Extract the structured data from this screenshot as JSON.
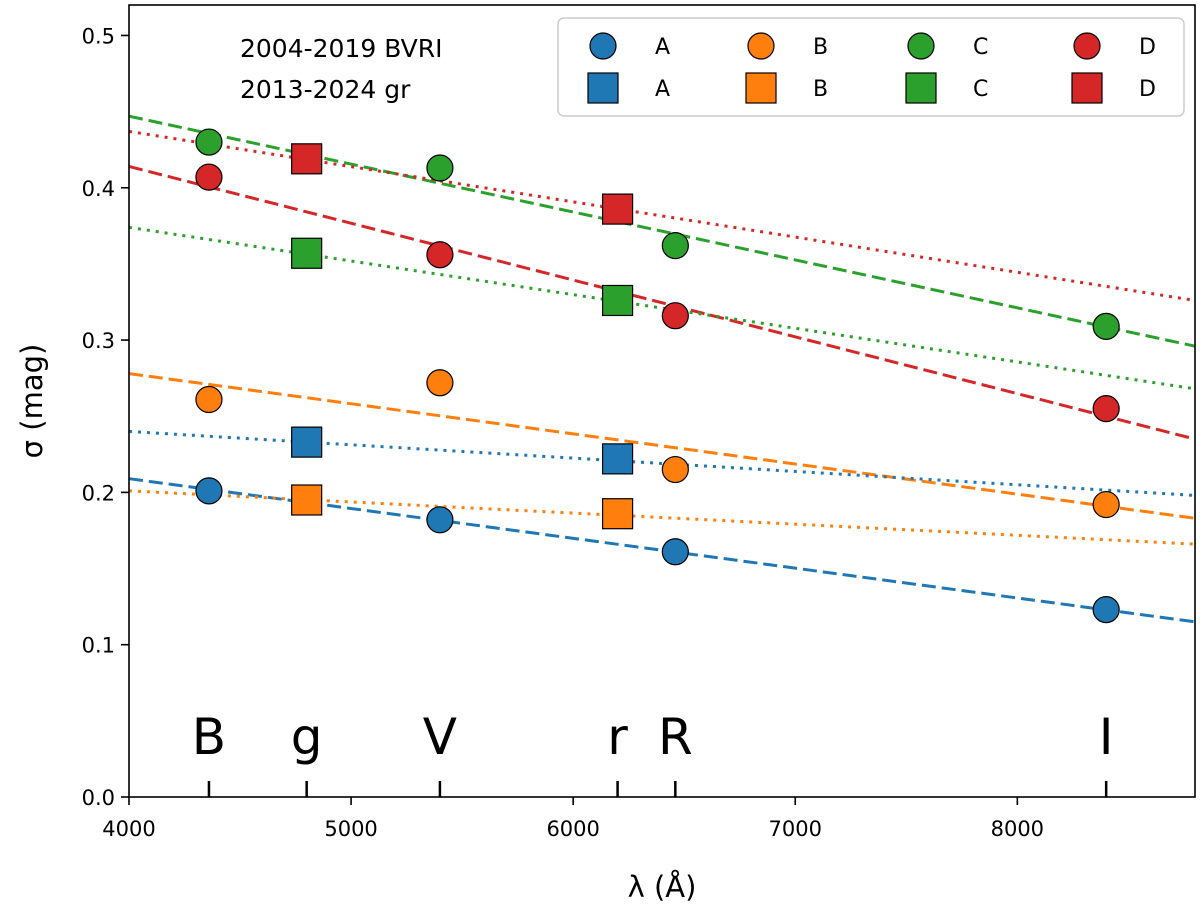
{
  "chart_data": {
    "type": "scatter",
    "xlabel": "λ (Å)",
    "ylabel": "σ (mag)",
    "xlim": [
      4000,
      8800
    ],
    "ylim": [
      0.0,
      0.52
    ],
    "xticks": [
      4000,
      5000,
      6000,
      7000,
      8000
    ],
    "xtick_labels": [
      "4000",
      "5000",
      "6000",
      "7000",
      "8000"
    ],
    "yticks": [
      0.0,
      0.1,
      0.2,
      0.3,
      0.4,
      0.5
    ],
    "ytick_labels": [
      "0.0",
      "0.1",
      "0.2",
      "0.3",
      "0.4",
      "0.5"
    ],
    "grid": false,
    "legend_placement": "top-right",
    "annotation_lines": [
      "2004-2019 BVRI",
      "2013-2024 gr"
    ],
    "band_markers": [
      {
        "label": "B",
        "x": 4360
      },
      {
        "label": "g",
        "x": 4800
      },
      {
        "label": "V",
        "x": 5400
      },
      {
        "label": "r",
        "x": 6200
      },
      {
        "label": "R",
        "x": 6460
      },
      {
        "label": "I",
        "x": 8400
      }
    ],
    "colors": {
      "A": "#1f77b4",
      "B": "#ff7f0e",
      "C": "#2ca02c",
      "D": "#d62728"
    },
    "series": [
      {
        "name": "A",
        "marker": "circle",
        "color": "#1f77b4",
        "points": [
          {
            "x": 4360,
            "y": 0.201
          },
          {
            "x": 5400,
            "y": 0.182
          },
          {
            "x": 6460,
            "y": 0.161
          },
          {
            "x": 8400,
            "y": 0.123
          }
        ]
      },
      {
        "name": "B",
        "marker": "circle",
        "color": "#ff7f0e",
        "points": [
          {
            "x": 4360,
            "y": 0.261
          },
          {
            "x": 5400,
            "y": 0.272
          },
          {
            "x": 6460,
            "y": 0.215
          },
          {
            "x": 8400,
            "y": 0.192
          }
        ]
      },
      {
        "name": "C",
        "marker": "circle",
        "color": "#2ca02c",
        "points": [
          {
            "x": 4360,
            "y": 0.43
          },
          {
            "x": 5400,
            "y": 0.413
          },
          {
            "x": 6460,
            "y": 0.362
          },
          {
            "x": 8400,
            "y": 0.309
          }
        ]
      },
      {
        "name": "D",
        "marker": "circle",
        "color": "#d62728",
        "points": [
          {
            "x": 4360,
            "y": 0.407
          },
          {
            "x": 5400,
            "y": 0.356
          },
          {
            "x": 6460,
            "y": 0.316
          },
          {
            "x": 8400,
            "y": 0.255
          }
        ]
      },
      {
        "name": "A",
        "marker": "square",
        "color": "#1f77b4",
        "points": [
          {
            "x": 4800,
            "y": 0.233
          },
          {
            "x": 6200,
            "y": 0.222
          }
        ]
      },
      {
        "name": "B",
        "marker": "square",
        "color": "#ff7f0e",
        "points": [
          {
            "x": 4800,
            "y": 0.195
          },
          {
            "x": 6200,
            "y": 0.186
          }
        ]
      },
      {
        "name": "C",
        "marker": "square",
        "color": "#2ca02c",
        "points": [
          {
            "x": 4800,
            "y": 0.357
          },
          {
            "x": 6200,
            "y": 0.326
          }
        ]
      },
      {
        "name": "D",
        "marker": "square",
        "color": "#d62728",
        "points": [
          {
            "x": 4800,
            "y": 0.419
          },
          {
            "x": 6200,
            "y": 0.386
          }
        ]
      }
    ],
    "fit_lines": [
      {
        "series": "A",
        "style": "dashed",
        "color": "#1f77b4",
        "x": [
          4000,
          8800
        ],
        "y": [
          0.209,
          0.115
        ]
      },
      {
        "series": "B",
        "style": "dashed",
        "color": "#ff7f0e",
        "x": [
          4000,
          8800
        ],
        "y": [
          0.278,
          0.183
        ]
      },
      {
        "series": "C",
        "style": "dashed",
        "color": "#2ca02c",
        "x": [
          4000,
          8800
        ],
        "y": [
          0.447,
          0.296
        ]
      },
      {
        "series": "D",
        "style": "dashed",
        "color": "#d62728",
        "x": [
          4000,
          8800
        ],
        "y": [
          0.414,
          0.235
        ]
      },
      {
        "series": "A",
        "style": "dotted",
        "color": "#1f77b4",
        "x": [
          4000,
          8800
        ],
        "y": [
          0.24,
          0.198
        ]
      },
      {
        "series": "B",
        "style": "dotted",
        "color": "#ff7f0e",
        "x": [
          4000,
          8800
        ],
        "y": [
          0.201,
          0.166
        ]
      },
      {
        "series": "C",
        "style": "dotted",
        "color": "#2ca02c",
        "x": [
          4000,
          8800
        ],
        "y": [
          0.374,
          0.268
        ]
      },
      {
        "series": "D",
        "style": "dotted",
        "color": "#d62728",
        "x": [
          4000,
          8800
        ],
        "y": [
          0.437,
          0.326
        ]
      }
    ]
  }
}
